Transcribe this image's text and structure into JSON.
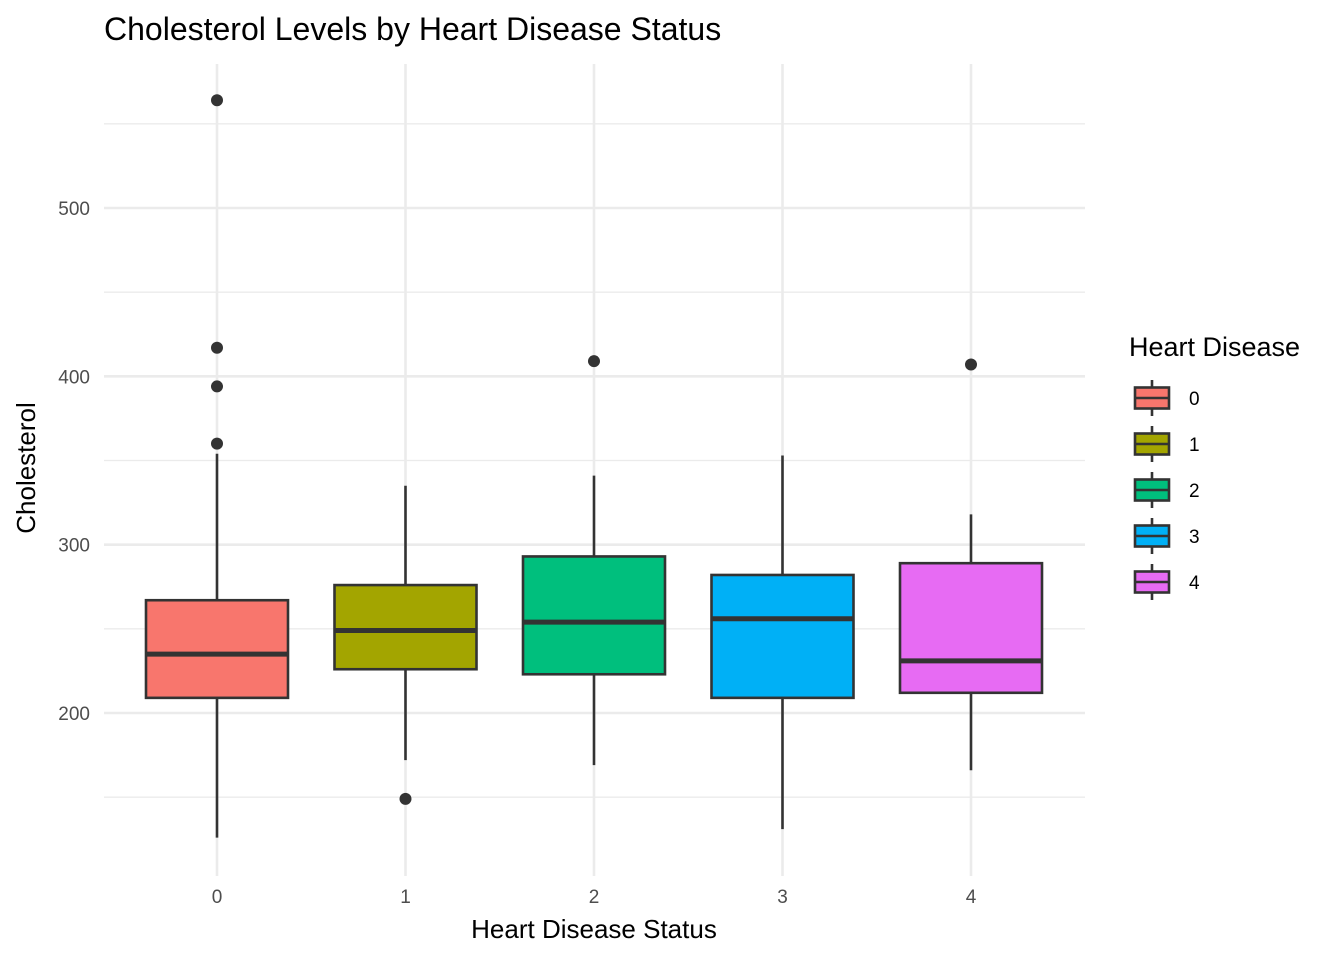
{
  "chart_data": {
    "type": "boxplot",
    "title": "Cholesterol Levels by Heart Disease Status",
    "xlabel": "Heart Disease Status",
    "ylabel": "Cholesterol",
    "categories": [
      "0",
      "1",
      "2",
      "3",
      "4"
    ],
    "y_ticks": [
      200,
      300,
      400,
      500
    ],
    "y_minor_ticks": [
      150,
      250,
      350,
      450,
      550
    ],
    "ylim": [
      105,
      585
    ],
    "grid": true,
    "legend": {
      "title": "Heart Disease",
      "position": "right",
      "entries": [
        "0",
        "1",
        "2",
        "3",
        "4"
      ]
    },
    "colors": [
      "#F8766D",
      "#A3A500",
      "#00BF7D",
      "#00B0F6",
      "#E76BF3"
    ],
    "series": [
      {
        "category": "0",
        "whisker_low": 126,
        "q1": 209,
        "median": 235,
        "q3": 267,
        "whisker_high": 354,
        "outliers": [
          564,
          417,
          394,
          360
        ]
      },
      {
        "category": "1",
        "whisker_low": 172,
        "q1": 226,
        "median": 249,
        "q3": 276,
        "whisker_high": 335,
        "outliers": [
          149
        ]
      },
      {
        "category": "2",
        "whisker_low": 169,
        "q1": 223,
        "median": 254,
        "q3": 293,
        "whisker_high": 341,
        "outliers": [
          409
        ]
      },
      {
        "category": "3",
        "whisker_low": 131,
        "q1": 209,
        "median": 256,
        "q3": 282,
        "whisker_high": 353,
        "outliers": []
      },
      {
        "category": "4",
        "whisker_low": 166,
        "q1": 212,
        "median": 231,
        "q3": 289,
        "whisker_high": 318,
        "outliers": [
          407
        ]
      }
    ]
  }
}
